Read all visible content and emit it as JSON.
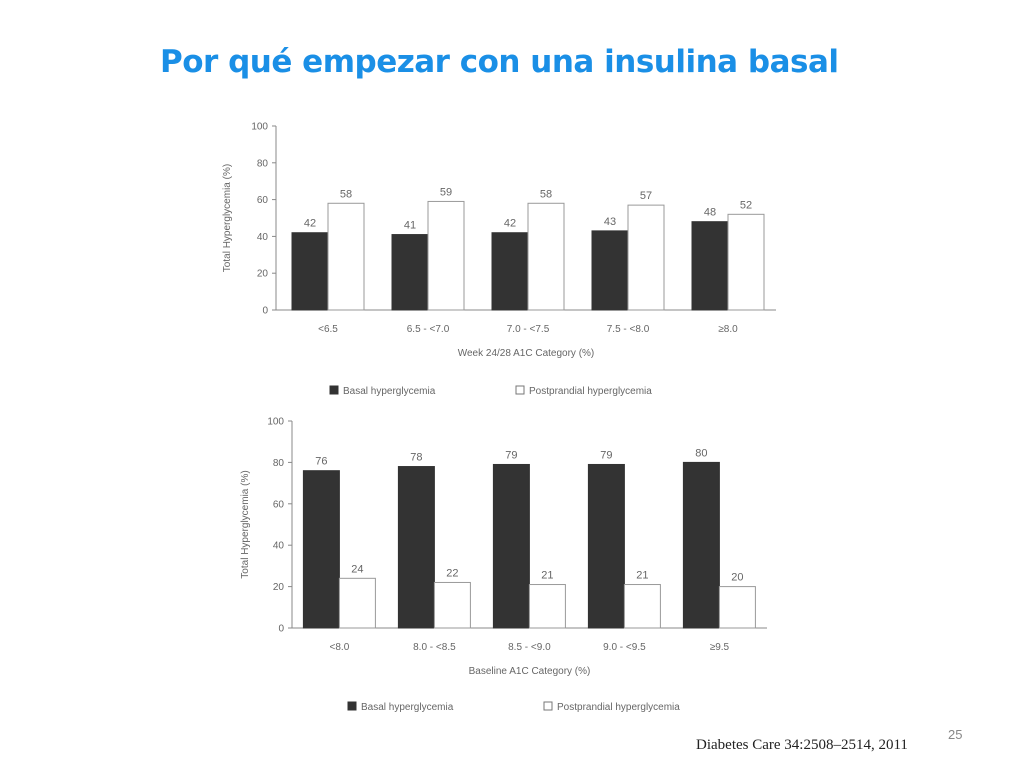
{
  "slide": {
    "title": "Por qué empezar con una insulina basal",
    "page_number": "25",
    "citation": "Diabetes Care 34:2508–2514, 2011"
  },
  "colors": {
    "title": "#1a8fe6",
    "basal_bar": "#333333",
    "postprandial_bar": "#ffffff",
    "axis": "#888888"
  },
  "chart_data": [
    {
      "type": "bar",
      "categories": [
        "<6.5",
        "6.5 - <7.0",
        "7.0 - <7.5",
        "7.5 - <8.0",
        "≥8.0"
      ],
      "series": [
        {
          "name": "Basal hyperglycemia",
          "values": [
            42,
            41,
            42,
            43,
            48
          ]
        },
        {
          "name": "Postprandial hyperglycemia",
          "values": [
            58,
            59,
            58,
            57,
            52
          ]
        }
      ],
      "ylabel": "Total Hyperglycemia (%)",
      "xlabel": "Week 24/28 A1C Category (%)",
      "ylim": [
        0,
        100
      ],
      "yticks": [
        0,
        20,
        40,
        60,
        80,
        100
      ],
      "legend": "bottom"
    },
    {
      "type": "bar",
      "categories": [
        "<8.0",
        "8.0 - <8.5",
        "8.5 - <9.0",
        "9.0 - <9.5",
        "≥9.5"
      ],
      "series": [
        {
          "name": "Basal hyperglycemia",
          "values": [
            76,
            78,
            79,
            79,
            80
          ]
        },
        {
          "name": "Postprandial hyperglycemia",
          "values": [
            24,
            22,
            21,
            21,
            20
          ]
        }
      ],
      "ylabel": "Total Hyperglycemia (%)",
      "xlabel": "Baseline A1C Category (%)",
      "ylim": [
        0,
        100
      ],
      "yticks": [
        0,
        20,
        40,
        60,
        80,
        100
      ],
      "legend": "bottom"
    }
  ]
}
